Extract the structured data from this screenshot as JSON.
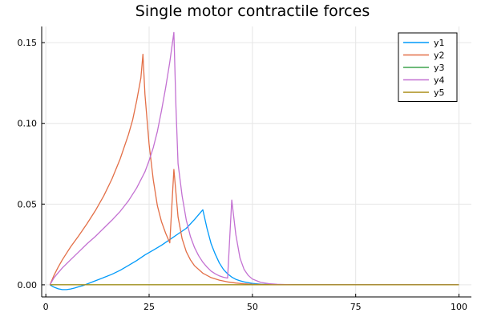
{
  "chart_data": {
    "type": "line",
    "title": "Single motor contractile forces",
    "xlabel": "",
    "ylabel": "",
    "xlim": [
      -1,
      103
    ],
    "ylim": [
      -0.0075,
      0.16
    ],
    "xticks": [
      0,
      25,
      50,
      75,
      100
    ],
    "xtick_labels": [
      "0",
      "25",
      "50",
      "75",
      "100"
    ],
    "yticks": [
      0.0,
      0.05,
      0.1,
      0.15
    ],
    "ytick_labels": [
      "0.00",
      "0.05",
      "0.10",
      "0.15"
    ],
    "grid": true,
    "legend_position": "top-right",
    "series": [
      {
        "name": "y1",
        "color": "#009AFA",
        "points": [
          [
            1,
            0
          ],
          [
            2,
            -0.0015
          ],
          [
            3,
            -0.0025
          ],
          [
            4,
            -0.003
          ],
          [
            5,
            -0.003
          ],
          [
            6,
            -0.0026
          ],
          [
            7,
            -0.002
          ],
          [
            8,
            -0.0012
          ],
          [
            9,
            -0.0005
          ],
          [
            10,
            0.0005
          ],
          [
            12,
            0.0025
          ],
          [
            14,
            0.0045
          ],
          [
            16,
            0.0065
          ],
          [
            18,
            0.009
          ],
          [
            20,
            0.012
          ],
          [
            22,
            0.015
          ],
          [
            24,
            0.0185
          ],
          [
            26,
            0.0215
          ],
          [
            28,
            0.0245
          ],
          [
            30,
            0.028
          ],
          [
            32,
            0.0315
          ],
          [
            34,
            0.035
          ],
          [
            36,
            0.0405
          ],
          [
            37,
            0.0435
          ],
          [
            38,
            0.0465
          ],
          [
            39,
            0.035
          ],
          [
            40,
            0.0255
          ],
          [
            41,
            0.019
          ],
          [
            42,
            0.0135
          ],
          [
            43,
            0.0095
          ],
          [
            44,
            0.0068
          ],
          [
            45,
            0.0048
          ],
          [
            46,
            0.0034
          ],
          [
            47,
            0.0025
          ],
          [
            48,
            0.0018
          ],
          [
            50,
            0.0009
          ],
          [
            52,
            0.0004
          ],
          [
            55,
            0.0001
          ],
          [
            60,
            0
          ],
          [
            100,
            0
          ]
        ]
      },
      {
        "name": "y2",
        "color": "#E36F47",
        "points": [
          [
            1,
            0
          ],
          [
            2,
            0.006
          ],
          [
            3,
            0.011
          ],
          [
            4,
            0.0155
          ],
          [
            5,
            0.0195
          ],
          [
            6,
            0.0235
          ],
          [
            8,
            0.0305
          ],
          [
            10,
            0.038
          ],
          [
            12,
            0.046
          ],
          [
            14,
            0.055
          ],
          [
            16,
            0.0655
          ],
          [
            18,
            0.078
          ],
          [
            20,
            0.093
          ],
          [
            21,
            0.102
          ],
          [
            22,
            0.114
          ],
          [
            23,
            0.128
          ],
          [
            23.5,
            0.1428
          ],
          [
            24,
            0.118
          ],
          [
            25,
            0.087
          ],
          [
            26,
            0.065
          ],
          [
            27,
            0.049
          ],
          [
            28,
            0.039
          ],
          [
            29,
            0.032
          ],
          [
            30,
            0.026
          ],
          [
            31,
            0.0715
          ],
          [
            32,
            0.042
          ],
          [
            33,
            0.0285
          ],
          [
            34,
            0.0205
          ],
          [
            35,
            0.0155
          ],
          [
            36,
            0.0118
          ],
          [
            38,
            0.0072
          ],
          [
            40,
            0.0045
          ],
          [
            42,
            0.0029
          ],
          [
            44,
            0.0018
          ],
          [
            46,
            0.0011
          ],
          [
            48,
            0.0006
          ],
          [
            50,
            0.0003
          ],
          [
            55,
            0.0001
          ],
          [
            60,
            0
          ],
          [
            100,
            0
          ]
        ]
      },
      {
        "name": "y3",
        "color": "#3EA44E",
        "points": [
          [
            1,
            0
          ],
          [
            100,
            0
          ]
        ]
      },
      {
        "name": "y4",
        "color": "#C371D2",
        "points": [
          [
            1,
            0
          ],
          [
            2,
            0.0045
          ],
          [
            3,
            0.0075
          ],
          [
            4,
            0.0105
          ],
          [
            6,
            0.0155
          ],
          [
            8,
            0.0205
          ],
          [
            10,
            0.0255
          ],
          [
            12,
            0.03
          ],
          [
            14,
            0.035
          ],
          [
            16,
            0.04
          ],
          [
            18,
            0.0455
          ],
          [
            20,
            0.052
          ],
          [
            22,
            0.06
          ],
          [
            24,
            0.07
          ],
          [
            25,
            0.077
          ],
          [
            26,
            0.085
          ],
          [
            27,
            0.095
          ],
          [
            28,
            0.108
          ],
          [
            29,
            0.122
          ],
          [
            30,
            0.138
          ],
          [
            31,
            0.1563
          ],
          [
            31.5,
            0.11
          ],
          [
            32,
            0.075
          ],
          [
            33,
            0.055
          ],
          [
            34,
            0.04
          ],
          [
            35,
            0.03
          ],
          [
            36,
            0.023
          ],
          [
            37,
            0.018
          ],
          [
            38,
            0.014
          ],
          [
            39,
            0.011
          ],
          [
            40,
            0.0085
          ],
          [
            41,
            0.0068
          ],
          [
            42,
            0.0055
          ],
          [
            43,
            0.0047
          ],
          [
            44,
            0.0042
          ],
          [
            45,
            0.0525
          ],
          [
            46,
            0.031
          ],
          [
            47,
            0.0165
          ],
          [
            48,
            0.0095
          ],
          [
            49,
            0.0058
          ],
          [
            50,
            0.0036
          ],
          [
            52,
            0.0015
          ],
          [
            54,
            0.0007
          ],
          [
            56,
            0.0003
          ],
          [
            60,
            0
          ],
          [
            100,
            0
          ]
        ]
      },
      {
        "name": "y5",
        "color": "#AC8D18",
        "points": [
          [
            1,
            0
          ],
          [
            100,
            0
          ]
        ]
      }
    ]
  }
}
